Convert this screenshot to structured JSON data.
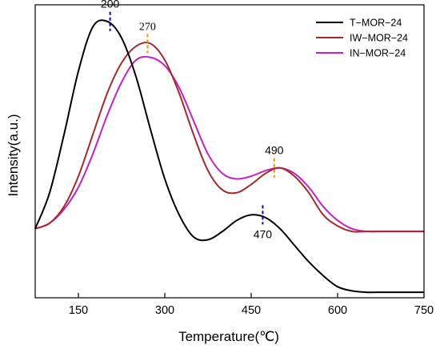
{
  "chart_data": {
    "type": "line",
    "xlabel": "Temperature(℃)",
    "ylabel": "Intensity(a.u.)",
    "xlim": [
      75,
      750
    ],
    "ylim": [
      0,
      1.06
    ],
    "y_tick_labels": "none",
    "xticks": [
      150,
      300,
      450,
      600,
      750
    ],
    "xtick_labels": [
      "150",
      "300",
      "450",
      "600",
      "750"
    ],
    "legend_position": "top-right",
    "series": [
      {
        "name": "T−MOR−24",
        "color": "#000000",
        "x": [
          75,
          100,
          125,
          150,
          175,
          200,
          225,
          250,
          275,
          300,
          325,
          350,
          375,
          400,
          425,
          450,
          475,
          500,
          525,
          550,
          575,
          600,
          625,
          650,
          675,
          700,
          725,
          750
        ],
        "y": [
          0.25,
          0.38,
          0.59,
          0.82,
          0.98,
          1.0,
          0.94,
          0.8,
          0.61,
          0.43,
          0.3,
          0.22,
          0.21,
          0.24,
          0.28,
          0.3,
          0.29,
          0.25,
          0.19,
          0.13,
          0.08,
          0.04,
          0.025,
          0.02,
          0.02,
          0.02,
          0.02,
          0.02
        ]
      },
      {
        "name": "IW−MOR−24",
        "color": "#a52a2a",
        "x": [
          75,
          100,
          125,
          150,
          175,
          200,
          225,
          250,
          275,
          300,
          325,
          350,
          375,
          400,
          425,
          450,
          475,
          500,
          525,
          550,
          575,
          600,
          625,
          650,
          675,
          700,
          725,
          750
        ],
        "y": [
          0.25,
          0.27,
          0.33,
          0.44,
          0.59,
          0.74,
          0.85,
          0.91,
          0.92,
          0.86,
          0.74,
          0.59,
          0.46,
          0.39,
          0.38,
          0.41,
          0.45,
          0.47,
          0.44,
          0.38,
          0.3,
          0.26,
          0.24,
          0.24,
          0.24,
          0.24,
          0.24,
          0.24
        ]
      },
      {
        "name": "IN−MOR−24",
        "color": "#c71fc7",
        "x": [
          75,
          100,
          125,
          150,
          175,
          200,
          225,
          250,
          275,
          300,
          325,
          350,
          375,
          400,
          425,
          450,
          475,
          500,
          525,
          550,
          575,
          600,
          625,
          650,
          675,
          700,
          725,
          750
        ],
        "y": [
          0.25,
          0.27,
          0.32,
          0.4,
          0.52,
          0.66,
          0.78,
          0.86,
          0.87,
          0.84,
          0.76,
          0.64,
          0.52,
          0.45,
          0.43,
          0.44,
          0.46,
          0.47,
          0.45,
          0.4,
          0.33,
          0.28,
          0.25,
          0.24,
          0.24,
          0.24,
          0.24,
          0.24
        ]
      }
    ],
    "annotations": [
      {
        "text": "200",
        "x": 205,
        "y": 1.0,
        "line_color": "#0000cc",
        "label": "above"
      },
      {
        "text": "270",
        "x": 270,
        "y": 0.92,
        "line_color": "#ff8c00",
        "label": "above"
      },
      {
        "text": "490",
        "x": 490,
        "y": 0.47,
        "line_color": "#ff8c00",
        "label": "above"
      },
      {
        "text": "470",
        "x": 470,
        "y": 0.3,
        "line_color": "#0000cc",
        "label": "below"
      }
    ]
  }
}
